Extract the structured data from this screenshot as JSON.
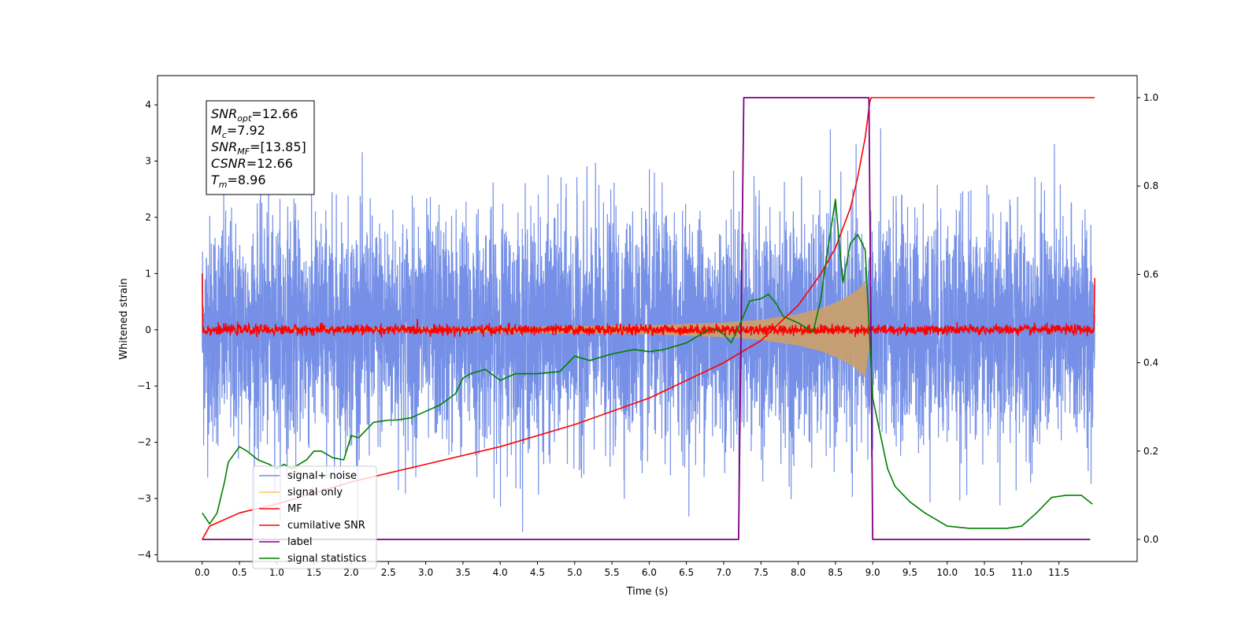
{
  "chart_data": {
    "type": "line",
    "xlabel": "Time (s)",
    "ylabel": "Whitened strain",
    "xlim": [
      -0.6,
      12.55
    ],
    "ylim": [
      -4.12,
      4.52
    ],
    "y2lim": [
      -0.05,
      1.05
    ],
    "x_ticks": [
      "0.0",
      "0.5",
      "1.0",
      "1.5",
      "2.0",
      "2.5",
      "3.0",
      "3.5",
      "4.0",
      "4.5",
      "5.0",
      "5.5",
      "6.0",
      "6.5",
      "7.0",
      "7.5",
      "8.0",
      "8.5",
      "9.0",
      "9.5",
      "10.0",
      "10.5",
      "11.0",
      "11.5"
    ],
    "y_ticks": [
      "−4",
      "−3",
      "−2",
      "−1",
      "0",
      "1",
      "2",
      "3",
      "4"
    ],
    "y2_ticks": [
      "0.0",
      "0.2",
      "0.4",
      "0.6",
      "0.8",
      "1.0"
    ],
    "annotation": [
      {
        "base": "SNR",
        "sub": "opt",
        "value": "=12.66"
      },
      {
        "base": "M",
        "sub": "c",
        "value": "=7.92"
      },
      {
        "base": "SNR",
        "sub": "MF",
        "value": "=[13.85]"
      },
      {
        "base": "CSNR",
        "sub": "",
        "value": "=12.66"
      },
      {
        "base": "T",
        "sub": "m",
        "value": "=8.96"
      }
    ],
    "legend": {
      "placement": "lower-left",
      "entries": [
        {
          "label": "signal+ noise",
          "color": "#7590e6"
        },
        {
          "label": "signal only",
          "color": "#ffc65a"
        },
        {
          "label": "MF",
          "color": "#ff0000"
        },
        {
          "label": "cumilative SNR",
          "color": "#ff0000"
        },
        {
          "label": "label",
          "color": "#800080"
        },
        {
          "label": "signal statistics",
          "color": "#008000"
        }
      ]
    },
    "series": [
      {
        "name": "signal+ noise",
        "axis": "left",
        "color": "#7590e6",
        "kind": "noise",
        "x_range": [
          0,
          11.98
        ],
        "sigma": 1.0
      },
      {
        "name": "signal only",
        "axis": "left",
        "color": "#c8a070",
        "kind": "chirp_envelope",
        "x_range": [
          0,
          8.96
        ],
        "x": [
          0,
          4.0,
          6.0,
          7.0,
          7.5,
          8.0,
          8.3,
          8.5,
          8.7,
          8.8,
          8.9,
          8.96
        ],
        "y": [
          0.02,
          0.05,
          0.08,
          0.13,
          0.18,
          0.28,
          0.38,
          0.48,
          0.62,
          0.72,
          0.85,
          0.25
        ]
      },
      {
        "name": "MF",
        "axis": "left",
        "color": "#ff0000",
        "kind": "mf_noise",
        "x_range": [
          0,
          11.98
        ],
        "edge_values": [
          1.0,
          0.92
        ]
      },
      {
        "name": "cumilative SNR",
        "axis": "right",
        "color": "#ff0000",
        "x": [
          0,
          0.1,
          0.5,
          1,
          2,
          3,
          4,
          5,
          6,
          7,
          7.5,
          8,
          8.3,
          8.5,
          8.7,
          8.8,
          8.9,
          8.96,
          8.98,
          11.98
        ],
        "y": [
          0.0,
          0.03,
          0.06,
          0.08,
          0.13,
          0.17,
          0.21,
          0.26,
          0.32,
          0.4,
          0.45,
          0.53,
          0.6,
          0.66,
          0.75,
          0.82,
          0.91,
          0.99,
          1.0,
          1.0
        ]
      },
      {
        "name": "label",
        "axis": "right",
        "color": "#800080",
        "x": [
          0,
          7.2,
          7.27,
          8.95,
          9.0,
          11.92
        ],
        "y": [
          0,
          0,
          1,
          1,
          0,
          0
        ]
      },
      {
        "name": "signal statistics",
        "axis": "right",
        "color": "#008000",
        "x": [
          0,
          0.1,
          0.2,
          0.3,
          0.35,
          0.5,
          0.6,
          0.75,
          0.9,
          1.0,
          1.1,
          1.2,
          1.3,
          1.4,
          1.5,
          1.6,
          1.75,
          1.9,
          2.0,
          2.1,
          2.3,
          2.5,
          2.6,
          2.8,
          3.0,
          3.2,
          3.4,
          3.5,
          3.6,
          3.8,
          4.0,
          4.2,
          4.5,
          4.8,
          5.0,
          5.2,
          5.5,
          5.8,
          6.0,
          6.2,
          6.5,
          6.8,
          6.9,
          7.0,
          7.1,
          7.2,
          7.35,
          7.5,
          7.6,
          7.7,
          7.8,
          8.0,
          8.2,
          8.3,
          8.4,
          8.5,
          8.6,
          8.7,
          8.8,
          8.9,
          9.0,
          9.1,
          9.2,
          9.3,
          9.5,
          9.7,
          10.0,
          10.3,
          10.5,
          10.8,
          11.0,
          11.2,
          11.4,
          11.6,
          11.8,
          11.95
        ],
        "y": [
          0.06,
          0.035,
          0.06,
          0.13,
          0.175,
          0.21,
          0.2,
          0.18,
          0.17,
          0.16,
          0.17,
          0.16,
          0.17,
          0.18,
          0.2,
          0.2,
          0.185,
          0.18,
          0.235,
          0.23,
          0.265,
          0.27,
          0.27,
          0.275,
          0.29,
          0.305,
          0.33,
          0.365,
          0.375,
          0.385,
          0.36,
          0.375,
          0.375,
          0.38,
          0.415,
          0.405,
          0.42,
          0.43,
          0.425,
          0.43,
          0.445,
          0.475,
          0.475,
          0.465,
          0.445,
          0.48,
          0.54,
          0.545,
          0.555,
          0.535,
          0.505,
          0.49,
          0.47,
          0.54,
          0.66,
          0.77,
          0.58,
          0.67,
          0.69,
          0.655,
          0.32,
          0.24,
          0.16,
          0.12,
          0.085,
          0.06,
          0.03,
          0.025,
          0.025,
          0.025,
          0.03,
          0.06,
          0.095,
          0.1,
          0.1,
          0.08
        ]
      }
    ]
  }
}
